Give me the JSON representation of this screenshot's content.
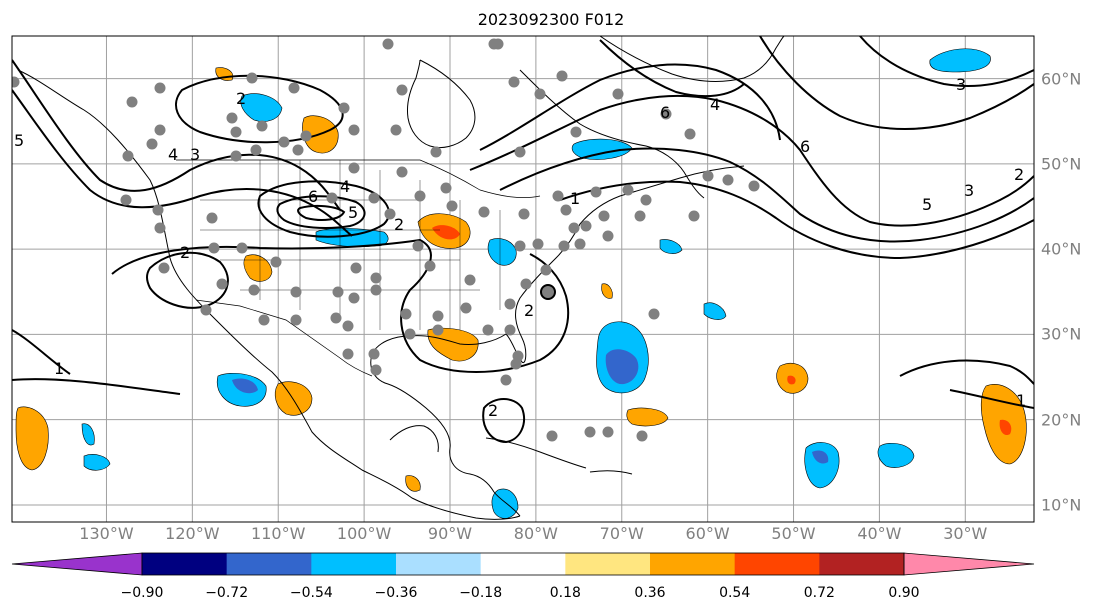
{
  "title": "2023092300 F012",
  "map": {
    "projection": "plate-carree",
    "lon_range": [
      -141,
      -22
    ],
    "lat_range": [
      8,
      65
    ],
    "lon_ticks": [
      {
        "value": -130,
        "label": "130°W"
      },
      {
        "value": -120,
        "label": "120°W"
      },
      {
        "value": -110,
        "label": "110°W"
      },
      {
        "value": -100,
        "label": "100°W"
      },
      {
        "value": -90,
        "label": "90°W"
      },
      {
        "value": -80,
        "label": "80°W"
      },
      {
        "value": -70,
        "label": "70°W"
      },
      {
        "value": -60,
        "label": "60°W"
      },
      {
        "value": -50,
        "label": "50°W"
      },
      {
        "value": -40,
        "label": "40°W"
      },
      {
        "value": -30,
        "label": "30°W"
      }
    ],
    "lat_ticks": [
      {
        "value": 10,
        "label": "10°N"
      },
      {
        "value": 20,
        "label": "20°N"
      },
      {
        "value": 30,
        "label": "30°N"
      },
      {
        "value": 40,
        "label": "40°N"
      },
      {
        "value": 50,
        "label": "50°N"
      },
      {
        "value": 60,
        "label": "60°N"
      }
    ],
    "grid": true,
    "contour_labels": [
      "1",
      "2",
      "3",
      "4",
      "5",
      "6"
    ]
  },
  "colorbar": {
    "colors": [
      "#9933cc",
      "#000080",
      "#3366cc",
      "#00bfff",
      "#aadfff",
      "#ffffff",
      "#ffe680",
      "#ffa500",
      "#ff4500",
      "#b22222",
      "#ff88aa"
    ],
    "labels": [
      "−0.90",
      "−0.72",
      "−0.54",
      "−0.36",
      "−0.18",
      "0.18",
      "0.36",
      "0.54",
      "0.72",
      "0.90"
    ],
    "extend": "both"
  },
  "colors": {
    "grid": "#a0a0a0",
    "tick_text": "#808080",
    "contour": "#000000",
    "station": "#808080"
  }
}
